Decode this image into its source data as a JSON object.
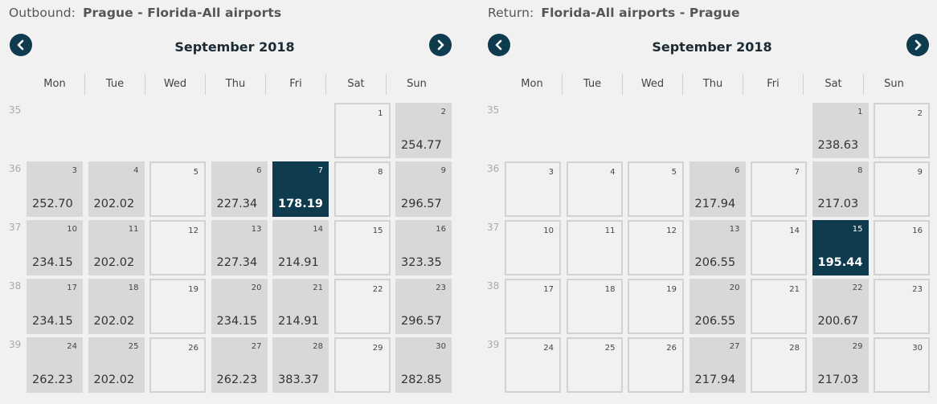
{
  "outbound": {
    "label": "Outbound:",
    "route": "Prague - Florida-All airports",
    "month": "September 2018",
    "weekdays": [
      "Mon",
      "Tue",
      "Wed",
      "Thu",
      "Fri",
      "Sat",
      "Sun"
    ],
    "weeks": [
      "35",
      "36",
      "37",
      "38",
      "39"
    ],
    "days": [
      {
        "d": "1",
        "p": ""
      },
      {
        "d": "2",
        "p": "254.77"
      },
      {
        "d": "3",
        "p": "252.70"
      },
      {
        "d": "4",
        "p": "202.02"
      },
      {
        "d": "5",
        "p": ""
      },
      {
        "d": "6",
        "p": "227.34"
      },
      {
        "d": "7",
        "p": "178.19",
        "sel": true
      },
      {
        "d": "8",
        "p": ""
      },
      {
        "d": "9",
        "p": "296.57"
      },
      {
        "d": "10",
        "p": "234.15"
      },
      {
        "d": "11",
        "p": "202.02"
      },
      {
        "d": "12",
        "p": ""
      },
      {
        "d": "13",
        "p": "227.34"
      },
      {
        "d": "14",
        "p": "214.91"
      },
      {
        "d": "15",
        "p": ""
      },
      {
        "d": "16",
        "p": "323.35"
      },
      {
        "d": "17",
        "p": "234.15"
      },
      {
        "d": "18",
        "p": "202.02"
      },
      {
        "d": "19",
        "p": ""
      },
      {
        "d": "20",
        "p": "234.15"
      },
      {
        "d": "21",
        "p": "214.91"
      },
      {
        "d": "22",
        "p": ""
      },
      {
        "d": "23",
        "p": "296.57"
      },
      {
        "d": "24",
        "p": "262.23"
      },
      {
        "d": "25",
        "p": "202.02"
      },
      {
        "d": "26",
        "p": ""
      },
      {
        "d": "27",
        "p": "262.23"
      },
      {
        "d": "28",
        "p": "383.37"
      },
      {
        "d": "29",
        "p": ""
      },
      {
        "d": "30",
        "p": "282.85"
      }
    ]
  },
  "return": {
    "label": "Return:",
    "route": "Florida-All airports - Prague",
    "month": "September 2018",
    "weekdays": [
      "Mon",
      "Tue",
      "Wed",
      "Thu",
      "Fri",
      "Sat",
      "Sun"
    ],
    "weeks": [
      "35",
      "36",
      "37",
      "38",
      "39"
    ],
    "days": [
      {
        "d": "1",
        "p": "238.63"
      },
      {
        "d": "2",
        "p": ""
      },
      {
        "d": "3",
        "p": ""
      },
      {
        "d": "4",
        "p": ""
      },
      {
        "d": "5",
        "p": ""
      },
      {
        "d": "6",
        "p": "217.94"
      },
      {
        "d": "7",
        "p": ""
      },
      {
        "d": "8",
        "p": "217.03"
      },
      {
        "d": "9",
        "p": ""
      },
      {
        "d": "10",
        "p": ""
      },
      {
        "d": "11",
        "p": ""
      },
      {
        "d": "12",
        "p": ""
      },
      {
        "d": "13",
        "p": "206.55"
      },
      {
        "d": "14",
        "p": ""
      },
      {
        "d": "15",
        "p": "195.44",
        "sel": true
      },
      {
        "d": "16",
        "p": ""
      },
      {
        "d": "17",
        "p": ""
      },
      {
        "d": "18",
        "p": ""
      },
      {
        "d": "19",
        "p": ""
      },
      {
        "d": "20",
        "p": "206.55"
      },
      {
        "d": "21",
        "p": ""
      },
      {
        "d": "22",
        "p": "200.67"
      },
      {
        "d": "23",
        "p": ""
      },
      {
        "d": "24",
        "p": ""
      },
      {
        "d": "25",
        "p": ""
      },
      {
        "d": "26",
        "p": ""
      },
      {
        "d": "27",
        "p": "217.94"
      },
      {
        "d": "28",
        "p": ""
      },
      {
        "d": "29",
        "p": "217.03"
      },
      {
        "d": "30",
        "p": ""
      }
    ]
  },
  "colors": {
    "accent": "#0e3b4e",
    "price_cell": "#d8d8d8",
    "empty_border": "#d2d2d2"
  },
  "icons": {
    "prev": "chevron-left-icon",
    "next": "chevron-right-icon"
  }
}
